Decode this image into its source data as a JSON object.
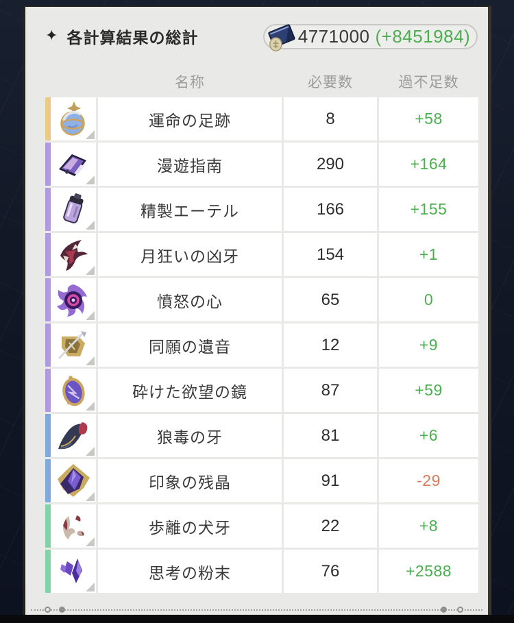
{
  "page": {
    "title": "各計算結果の総計",
    "title_icon": "four-pointed-star-icon"
  },
  "currency": {
    "icon": "credit-icon",
    "value": "4771000",
    "delta": "(+8451984)"
  },
  "table": {
    "headers": {
      "name": "名称",
      "required": "必要数",
      "balance": "過不足数"
    },
    "rows": [
      {
        "name": "運命の足跡",
        "required": "8",
        "balance": "+58",
        "balance_state": "positive",
        "rarity_color": "#ecc984",
        "icon": "tracks-of-destiny-icon"
      },
      {
        "name": "漫遊指南",
        "required": "290",
        "balance": "+164",
        "balance_state": "positive",
        "rarity_color": "#b09ae4",
        "icon": "travel-guide-icon"
      },
      {
        "name": "精製エーテル",
        "required": "166",
        "balance": "+155",
        "balance_state": "positive",
        "rarity_color": "#b09ae4",
        "icon": "refined-aether-icon"
      },
      {
        "name": "月狂いの凶牙",
        "required": "154",
        "balance": "+1",
        "balance_state": "positive",
        "rarity_color": "#b09ae4",
        "icon": "lunatic-fang-icon"
      },
      {
        "name": "憤怒の心",
        "required": "65",
        "balance": "0",
        "balance_state": "positive",
        "rarity_color": "#b09ae4",
        "icon": "heart-of-wrath-icon"
      },
      {
        "name": "同願の遺音",
        "required": "12",
        "balance": "+9",
        "balance_state": "positive",
        "rarity_color": "#b09ae4",
        "icon": "echo-of-wish-icon"
      },
      {
        "name": "砕けた欲望の鏡",
        "required": "87",
        "balance": "+59",
        "balance_state": "positive",
        "rarity_color": "#b09ae4",
        "icon": "broken-mirror-icon"
      },
      {
        "name": "狼毒の牙",
        "required": "81",
        "balance": "+6",
        "balance_state": "positive",
        "rarity_color": "#7cacdf",
        "icon": "wolfpoison-fang-icon"
      },
      {
        "name": "印象の残晶",
        "required": "91",
        "balance": "-29",
        "balance_state": "negative",
        "rarity_color": "#7cacdf",
        "icon": "impression-crystal-icon"
      },
      {
        "name": "歩離の犬牙",
        "required": "22",
        "balance": "+8",
        "balance_state": "positive",
        "rarity_color": "#82d4a8",
        "icon": "stray-dog-fang-icon"
      },
      {
        "name": "思考の粉末",
        "required": "76",
        "balance": "+2588",
        "balance_state": "positive",
        "rarity_color": "#82d4a8",
        "icon": "thought-powder-icon"
      }
    ]
  },
  "colors": {
    "positive": "#4cae51",
    "negative": "#d97b5a"
  }
}
